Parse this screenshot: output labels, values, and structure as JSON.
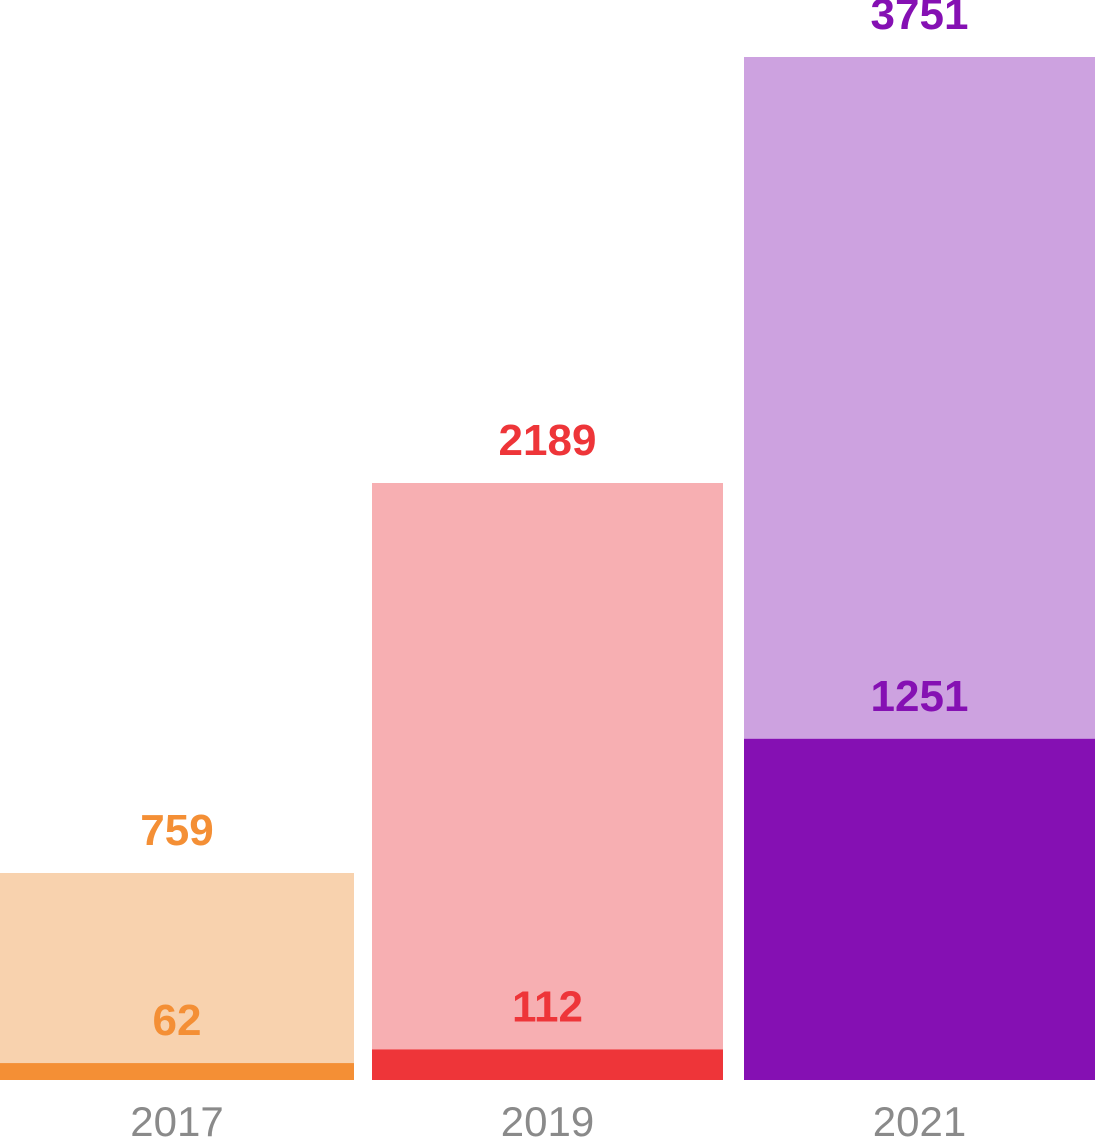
{
  "chart_data": {
    "type": "bar",
    "categories": [
      "2017",
      "2019",
      "2021"
    ],
    "series": [
      {
        "values": [
          759,
          2189,
          3751
        ]
      },
      {
        "values": [
          62,
          112,
          1251
        ]
      }
    ],
    "colors": {
      "total": [
        "#F8D2AE",
        "#F7AFB2",
        "#CDA2E0"
      ],
      "part": [
        "#F48F35",
        "#EE3539",
        "#8510B3"
      ],
      "label": [
        "#F48F35",
        "#EE3539",
        "#8510B3"
      ]
    },
    "ylim": [
      0,
      3751
    ],
    "grid": false,
    "legend": "none"
  }
}
